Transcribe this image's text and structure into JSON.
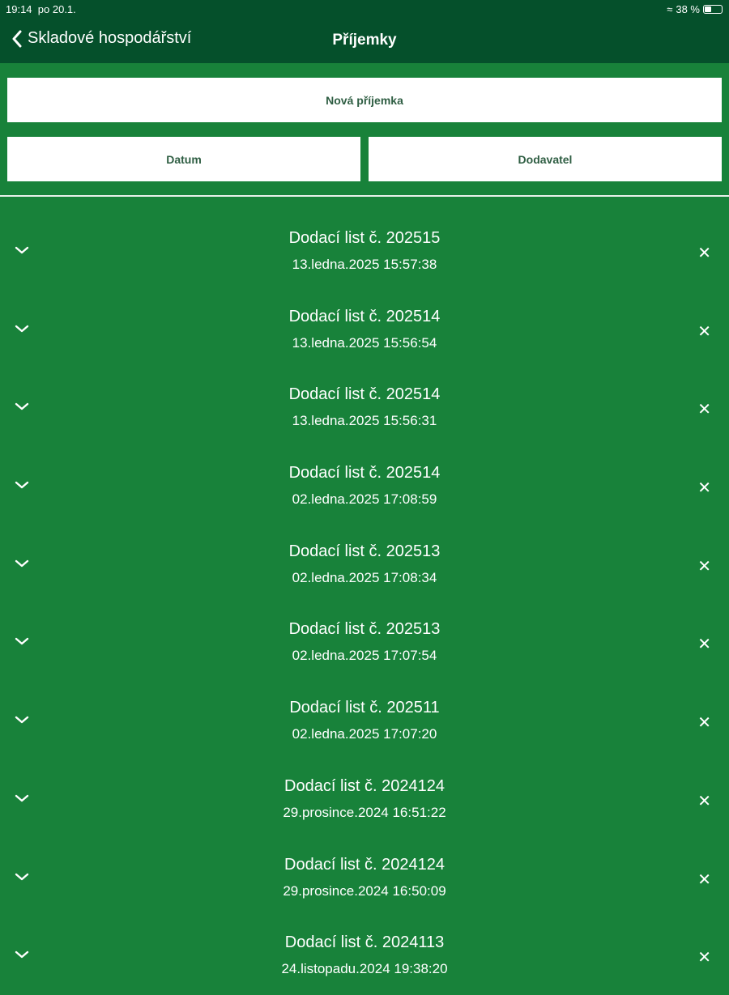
{
  "status": {
    "time": "19:14",
    "date": "po 20.1.",
    "battery": "38 %",
    "battery_level": 0.38
  },
  "nav": {
    "back_label": "Skladové hospodářství",
    "title": "Příjemky"
  },
  "buttons": {
    "new": "Nová příjemka",
    "date": "Datum",
    "supplier": "Dodavatel"
  },
  "items": [
    {
      "title": "Dodací list č. 202515",
      "date": "13.ledna.2025 15:57:38"
    },
    {
      "title": "Dodací list č. 202514",
      "date": "13.ledna.2025 15:56:54"
    },
    {
      "title": "Dodací list č. 202514",
      "date": "13.ledna.2025 15:56:31"
    },
    {
      "title": "Dodací list č. 202514",
      "date": "02.ledna.2025 17:08:59"
    },
    {
      "title": "Dodací list č. 202513",
      "date": "02.ledna.2025 17:08:34"
    },
    {
      "title": "Dodací list č. 202513",
      "date": "02.ledna.2025 17:07:54"
    },
    {
      "title": "Dodací list č. 202511",
      "date": "02.ledna.2025 17:07:20"
    },
    {
      "title": "Dodací list č. 2024124",
      "date": "29.prosince.2024 16:51:22"
    },
    {
      "title": "Dodací list č. 2024124",
      "date": "29.prosince.2024 16:50:09"
    },
    {
      "title": "Dodací list č. 2024113",
      "date": "24.listopadu.2024 19:38:20"
    }
  ],
  "colors": {
    "header": "#05502b",
    "background": "#18823a",
    "button_text": "#2f5e43"
  }
}
